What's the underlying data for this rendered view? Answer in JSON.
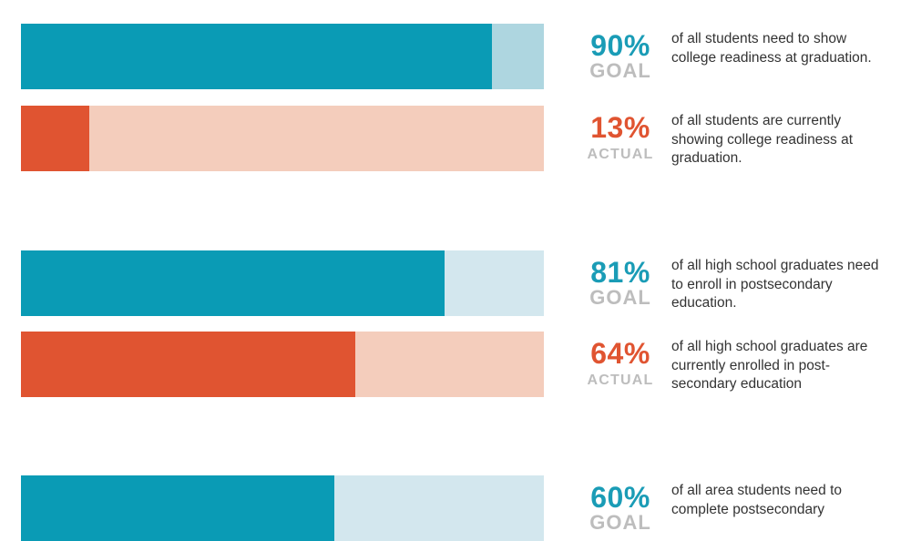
{
  "colors": {
    "goal_fill": "#0a9bb5",
    "goal_track_1": "#aed6e0",
    "goal_track": "#d3e7ee",
    "actual_fill": "#e05431",
    "actual_track": "#f4cdbc",
    "goal_text": "#1a9cb6",
    "actual_text": "#e05431"
  },
  "chart_data": {
    "type": "bar",
    "orientation": "horizontal",
    "xlim": [
      0,
      100
    ],
    "items": [
      {
        "kind": "goal",
        "value": 90,
        "pct_label": "90%",
        "tag": "GOAL",
        "description": "of all students need to show college readiness at graduation."
      },
      {
        "kind": "actual",
        "value": 13,
        "pct_label": "13%",
        "tag": "ACTUAL",
        "description": "of all students are currently showing college readiness at graduation."
      },
      {
        "kind": "goal",
        "value": 81,
        "pct_label": "81%",
        "tag": "GOAL",
        "description": "of all high school graduates need to enroll in postsecondary education."
      },
      {
        "kind": "actual",
        "value": 64,
        "pct_label": "64%",
        "tag": "ACTUAL",
        "description": "of all high school graduates are currently enrolled in post-secondary education"
      },
      {
        "kind": "goal",
        "value": 60,
        "pct_label": "60%",
        "tag": "GOAL",
        "description": "of all area students need to complete postsecondary"
      }
    ]
  }
}
